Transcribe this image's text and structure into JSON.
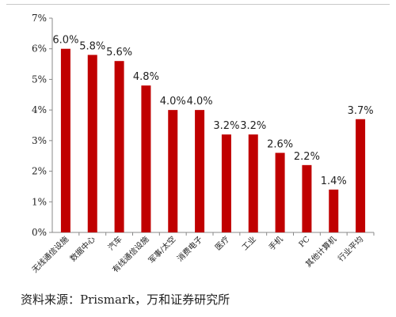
{
  "chart_data": {
    "type": "bar",
    "categories": [
      "无线通信设施",
      "数据中心",
      "汽车",
      "有线通信设施",
      "军事/太空",
      "消费电子",
      "医疗",
      "工业",
      "手机",
      "PC",
      "其他计算机",
      "行业平均"
    ],
    "values": [
      6.0,
      5.8,
      5.6,
      4.8,
      4.0,
      4.0,
      3.2,
      3.2,
      2.6,
      2.2,
      1.4,
      3.7
    ],
    "data_labels": [
      "6.0%",
      "5.8%",
      "5.6%",
      "4.8%",
      "4.0%",
      "4.0%",
      "3.2%",
      "3.2%",
      "2.6%",
      "2.2%",
      "1.4%",
      "3.7%"
    ],
    "y_ticks": [
      "0%",
      "1%",
      "2%",
      "3%",
      "4%",
      "5%",
      "6%",
      "7%"
    ],
    "ylim": [
      0,
      7
    ],
    "grid": false,
    "bar_color": "#c00000"
  },
  "source_text": "资料来源：Prismark，万和证券研究所"
}
